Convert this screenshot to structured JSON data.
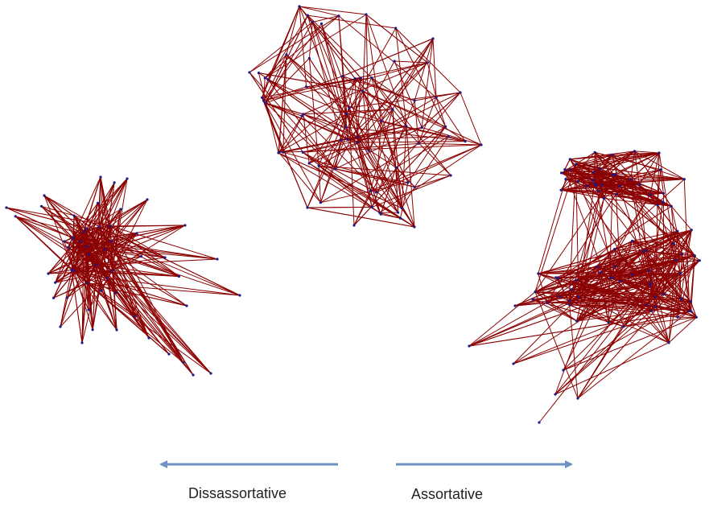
{
  "labels": {
    "left": "Dissassortative",
    "right": "Assortative"
  },
  "colors": {
    "edge": "#8b0000",
    "node": "#1a1a8a",
    "arrow": "#6f93c0",
    "text": "#222222"
  },
  "networks": [
    {
      "name": "disassortative-network",
      "node_count": 55,
      "edge_count": 300,
      "seed": 11
    },
    {
      "name": "neutral-network",
      "node_count": 70,
      "edge_count": 260,
      "seed": 23
    },
    {
      "name": "assortative-network",
      "node_count": 90,
      "edge_count": 520,
      "seed": 37
    }
  ]
}
